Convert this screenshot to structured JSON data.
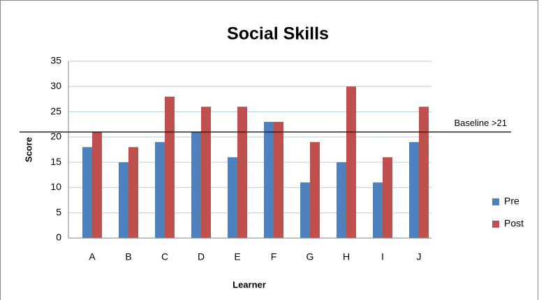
{
  "chart_data": {
    "type": "bar",
    "title": "Social Skills",
    "x_label": "Learner",
    "y_label": "Score",
    "categories": [
      "A",
      "B",
      "C",
      "D",
      "E",
      "F",
      "G",
      "H",
      "I",
      "J"
    ],
    "series": [
      {
        "name": "Pre",
        "color": "#4f81bd",
        "values": [
          18,
          15,
          19,
          21,
          16,
          23,
          11,
          15,
          11,
          19
        ]
      },
      {
        "name": "Post",
        "color": "#c0504d",
        "values": [
          21,
          18,
          28,
          26,
          26,
          23,
          19,
          30,
          16,
          26
        ]
      }
    ],
    "ylim": [
      0,
      35
    ],
    "yticks": [
      0,
      5,
      10,
      15,
      20,
      25,
      30,
      35
    ],
    "grid": true,
    "baseline": {
      "value": 21,
      "label": "Baseline >21"
    },
    "legend": "right"
  }
}
